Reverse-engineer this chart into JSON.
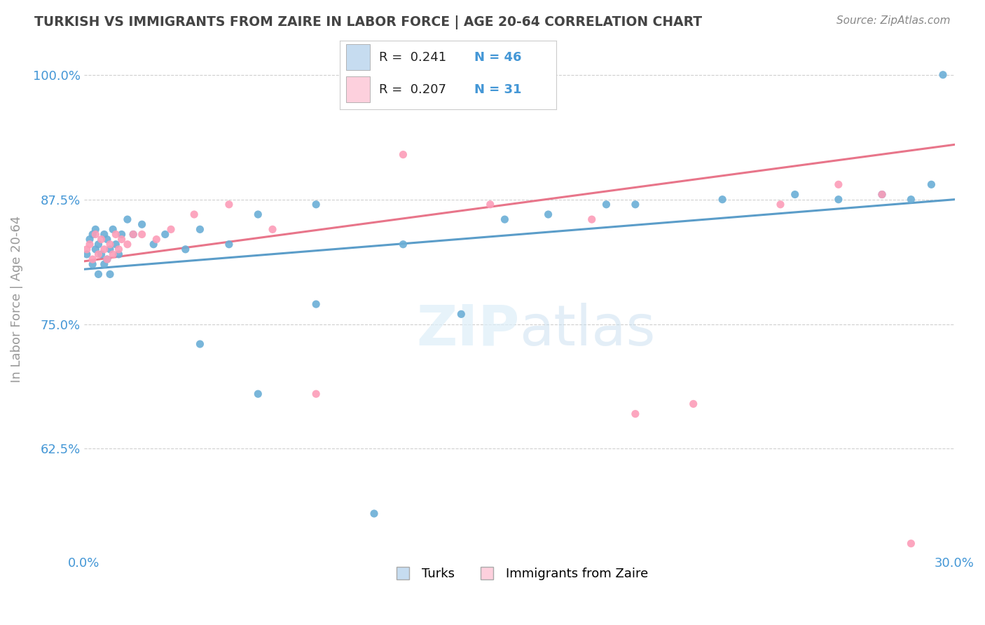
{
  "title": "TURKISH VS IMMIGRANTS FROM ZAIRE IN LABOR FORCE | AGE 20-64 CORRELATION CHART",
  "source_text": "Source: ZipAtlas.com",
  "ylabel": "In Labor Force | Age 20-64",
  "xlim": [
    0.0,
    0.3
  ],
  "ylim": [
    0.52,
    1.03
  ],
  "xtick_labels": [
    "0.0%",
    "30.0%"
  ],
  "ytick_labels": [
    "62.5%",
    "75.0%",
    "87.5%",
    "100.0%"
  ],
  "ytick_values": [
    0.625,
    0.75,
    0.875,
    1.0
  ],
  "xtick_values": [
    0.0,
    0.3
  ],
  "legend_labels": [
    "Turks",
    "Immigrants from Zaire"
  ],
  "blue_color": "#6baed6",
  "pink_color": "#fc9db8",
  "blue_line_color": "#5b9dc9",
  "pink_line_color": "#e8758a",
  "blue_fill": "#c6dcf0",
  "pink_fill": "#fdd0dd",
  "R_turks": 0.241,
  "N_turks": 46,
  "R_zaire": 0.207,
  "N_zaire": 31,
  "title_color": "#444444",
  "source_color": "#888888",
  "axis_color": "#999999",
  "grid_color": "#d0d0d0",
  "text_color_blue": "#4497d6",
  "text_color_dark": "#222222",
  "turks_x": [
    0.001,
    0.002,
    0.003,
    0.003,
    0.004,
    0.004,
    0.005,
    0.005,
    0.006,
    0.007,
    0.007,
    0.008,
    0.008,
    0.009,
    0.009,
    0.01,
    0.011,
    0.012,
    0.013,
    0.015,
    0.017,
    0.02,
    0.024,
    0.028,
    0.035,
    0.04,
    0.05,
    0.06,
    0.08,
    0.1,
    0.13,
    0.16,
    0.19,
    0.22,
    0.245,
    0.26,
    0.275,
    0.285,
    0.292,
    0.296,
    0.04,
    0.06,
    0.08,
    0.11,
    0.145,
    0.18
  ],
  "turks_y": [
    0.82,
    0.835,
    0.81,
    0.84,
    0.825,
    0.845,
    0.8,
    0.83,
    0.82,
    0.81,
    0.84,
    0.815,
    0.835,
    0.825,
    0.8,
    0.845,
    0.83,
    0.82,
    0.84,
    0.855,
    0.84,
    0.85,
    0.83,
    0.84,
    0.825,
    0.845,
    0.83,
    0.86,
    0.87,
    0.56,
    0.76,
    0.86,
    0.87,
    0.875,
    0.88,
    0.875,
    0.88,
    0.875,
    0.89,
    1.0,
    0.73,
    0.68,
    0.77,
    0.83,
    0.855,
    0.87
  ],
  "zaire_x": [
    0.001,
    0.002,
    0.003,
    0.004,
    0.005,
    0.006,
    0.007,
    0.008,
    0.009,
    0.01,
    0.011,
    0.012,
    0.013,
    0.015,
    0.017,
    0.02,
    0.025,
    0.03,
    0.038,
    0.05,
    0.065,
    0.08,
    0.11,
    0.14,
    0.175,
    0.21,
    0.24,
    0.26,
    0.275,
    0.285,
    0.19
  ],
  "zaire_y": [
    0.825,
    0.83,
    0.815,
    0.84,
    0.82,
    0.835,
    0.825,
    0.815,
    0.83,
    0.82,
    0.84,
    0.825,
    0.835,
    0.83,
    0.84,
    0.84,
    0.835,
    0.845,
    0.86,
    0.87,
    0.845,
    0.68,
    0.92,
    0.87,
    0.855,
    0.67,
    0.87,
    0.89,
    0.88,
    0.53,
    0.66
  ],
  "trend_turks_y0": 0.805,
  "trend_turks_y1": 0.875,
  "trend_zaire_y0": 0.813,
  "trend_zaire_y1": 0.93
}
